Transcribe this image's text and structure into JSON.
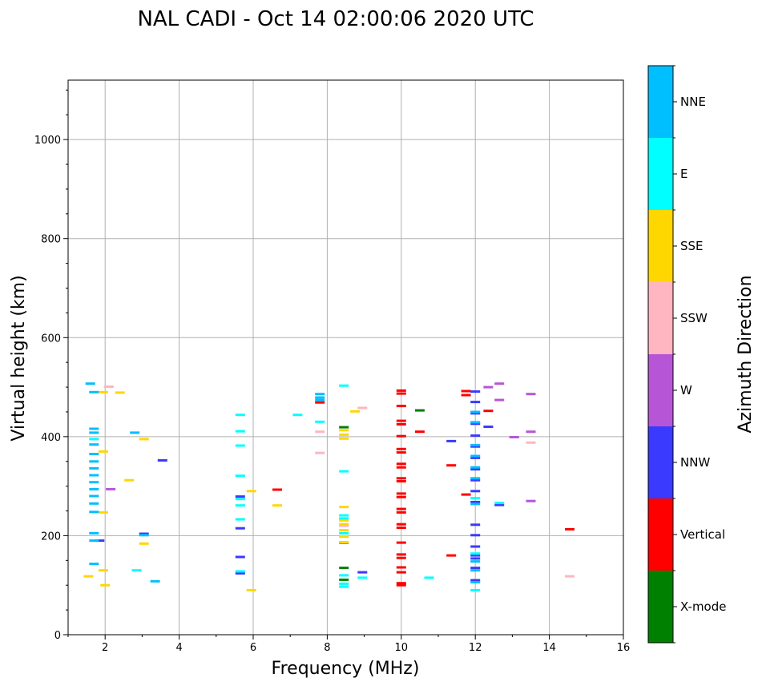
{
  "chart_data": {
    "type": "scatter",
    "title": "NAL CADI - Oct 14 02:00:06 2020 UTC",
    "xlabel": "Frequency (MHz)",
    "ylabel": "Virtual height (km)",
    "xlim": [
      1,
      16
    ],
    "ylim": [
      0,
      1120
    ],
    "xticks": [
      2,
      4,
      6,
      8,
      10,
      12,
      14,
      16
    ],
    "yticks": [
      0,
      200,
      400,
      600,
      800,
      1000
    ],
    "grid": true,
    "colorbar": {
      "title": "Azimuth Direction",
      "categories": [
        {
          "name": "X-mode",
          "color": "#008000"
        },
        {
          "name": "Vertical",
          "color": "#ff0000"
        },
        {
          "name": "NNW",
          "color": "#3a3aff"
        },
        {
          "name": "W",
          "color": "#b656d6"
        },
        {
          "name": "SSW",
          "color": "#ffb6c1"
        },
        {
          "name": "SSE",
          "color": "#ffd700"
        },
        {
          "name": "E",
          "color": "#00ffff"
        },
        {
          "name": "NNE",
          "color": "#00bfff"
        }
      ]
    },
    "series": [
      {
        "name": "X-mode",
        "points": [
          [
            8.45,
            419
          ],
          [
            8.45,
            186
          ],
          [
            8.45,
            135
          ],
          [
            8.45,
            111
          ],
          [
            10.5,
            453
          ]
        ]
      },
      {
        "name": "Vertical",
        "points": [
          [
            10.0,
            493
          ],
          [
            10.0,
            487
          ],
          [
            10.0,
            462
          ],
          [
            10.0,
            432
          ],
          [
            10.0,
            425
          ],
          [
            10.0,
            401
          ],
          [
            10.0,
            375
          ],
          [
            10.0,
            368
          ],
          [
            10.0,
            345
          ],
          [
            10.0,
            338
          ],
          [
            10.0,
            316
          ],
          [
            10.0,
            310
          ],
          [
            10.0,
            285
          ],
          [
            10.0,
            278
          ],
          [
            10.0,
            254
          ],
          [
            10.0,
            247
          ],
          [
            10.0,
            223
          ],
          [
            10.0,
            216
          ],
          [
            10.0,
            186
          ],
          [
            10.0,
            162
          ],
          [
            10.0,
            155
          ],
          [
            10.0,
            136
          ],
          [
            10.0,
            126
          ],
          [
            10.0,
            104
          ],
          [
            10.0,
            100
          ],
          [
            10.5,
            410
          ],
          [
            11.35,
            342
          ],
          [
            11.35,
            160
          ],
          [
            11.75,
            283
          ],
          [
            11.75,
            492
          ],
          [
            11.75,
            484
          ],
          [
            7.8,
            469
          ],
          [
            6.65,
            293
          ],
          [
            14.55,
            213
          ],
          [
            12.35,
            452
          ]
        ]
      },
      {
        "name": "NNW",
        "points": [
          [
            12.0,
            491
          ],
          [
            12.0,
            470
          ],
          [
            12.0,
            447
          ],
          [
            12.0,
            426
          ],
          [
            12.0,
            402
          ],
          [
            12.0,
            380
          ],
          [
            12.0,
            357
          ],
          [
            12.0,
            334
          ],
          [
            12.0,
            312
          ],
          [
            12.0,
            290
          ],
          [
            12.0,
            268
          ],
          [
            12.0,
            222
          ],
          [
            12.0,
            201
          ],
          [
            12.0,
            178
          ],
          [
            12.0,
            160
          ],
          [
            12.0,
            154
          ],
          [
            12.0,
            135
          ],
          [
            12.0,
            110
          ],
          [
            11.35,
            391
          ],
          [
            12.35,
            420
          ],
          [
            12.65,
            262
          ],
          [
            5.65,
            279
          ],
          [
            5.65,
            215
          ],
          [
            5.65,
            157
          ],
          [
            5.65,
            124
          ],
          [
            8.95,
            126
          ],
          [
            1.85,
            190
          ],
          [
            3.05,
            204
          ],
          [
            3.55,
            352
          ]
        ]
      },
      {
        "name": "W",
        "points": [
          [
            12.35,
            500
          ],
          [
            12.65,
            507
          ],
          [
            13.5,
            486
          ],
          [
            13.5,
            410
          ],
          [
            13.5,
            270
          ],
          [
            13.05,
            399
          ],
          [
            12.65,
            474
          ],
          [
            2.15,
            294
          ]
        ]
      },
      {
        "name": "SSW",
        "points": [
          [
            7.8,
            410
          ],
          [
            7.8,
            367
          ],
          [
            8.95,
            458
          ],
          [
            13.5,
            388
          ],
          [
            14.55,
            118
          ],
          [
            8.45,
            220
          ],
          [
            2.1,
            501
          ]
        ]
      },
      {
        "name": "SSE",
        "points": [
          [
            8.45,
            413
          ],
          [
            8.45,
            404
          ],
          [
            8.45,
            396
          ],
          [
            8.45,
            258
          ],
          [
            8.45,
            231
          ],
          [
            8.45,
            223
          ],
          [
            8.45,
            211
          ],
          [
            8.45,
            198
          ],
          [
            8.45,
            187
          ],
          [
            8.75,
            451
          ],
          [
            5.95,
            290
          ],
          [
            5.95,
            90
          ],
          [
            6.65,
            261
          ],
          [
            2.4,
            489
          ],
          [
            1.95,
            490
          ],
          [
            1.95,
            370
          ],
          [
            2.65,
            312
          ],
          [
            3.05,
            395
          ],
          [
            3.05,
            184
          ],
          [
            1.95,
            247
          ],
          [
            1.95,
            130
          ],
          [
            1.55,
            118
          ],
          [
            2.0,
            100
          ]
        ]
      },
      {
        "name": "E",
        "points": [
          [
            8.45,
            503
          ],
          [
            8.45,
            330
          ],
          [
            8.45,
            241
          ],
          [
            8.45,
            235
          ],
          [
            8.45,
            205
          ],
          [
            8.45,
            120
          ],
          [
            8.45,
            103
          ],
          [
            8.45,
            97
          ],
          [
            5.65,
            444
          ],
          [
            5.65,
            411
          ],
          [
            5.65,
            382
          ],
          [
            5.65,
            321
          ],
          [
            5.65,
            274
          ],
          [
            5.65,
            261
          ],
          [
            5.65,
            233
          ],
          [
            5.65,
            128
          ],
          [
            7.2,
            444
          ],
          [
            7.8,
            430
          ],
          [
            8.95,
            115
          ],
          [
            10.75,
            115
          ],
          [
            12.0,
            90
          ],
          [
            12.0,
            276
          ],
          [
            12.0,
            164
          ],
          [
            12.65,
            266
          ],
          [
            2.85,
            130
          ],
          [
            1.7,
            395
          ]
        ]
      },
      {
        "name": "NNE",
        "points": [
          [
            7.8,
            486
          ],
          [
            7.8,
            479
          ],
          [
            7.8,
            474
          ],
          [
            12.0,
            450
          ],
          [
            12.0,
            429
          ],
          [
            12.0,
            383
          ],
          [
            12.0,
            361
          ],
          [
            12.0,
            338
          ],
          [
            12.0,
            316
          ],
          [
            12.0,
            264
          ],
          [
            12.0,
            148
          ],
          [
            12.0,
            130
          ],
          [
            12.0,
            106
          ],
          [
            1.7,
            416
          ],
          [
            1.7,
            408
          ],
          [
            1.7,
            384
          ],
          [
            1.7,
            365
          ],
          [
            1.7,
            350
          ],
          [
            1.7,
            336
          ],
          [
            1.7,
            322
          ],
          [
            1.7,
            308
          ],
          [
            1.7,
            294
          ],
          [
            1.7,
            280
          ],
          [
            1.7,
            265
          ],
          [
            1.7,
            248
          ],
          [
            1.7,
            205
          ],
          [
            1.7,
            190
          ],
          [
            1.7,
            143
          ],
          [
            1.6,
            507
          ],
          [
            1.7,
            490
          ],
          [
            2.8,
            408
          ],
          [
            3.05,
            201
          ],
          [
            3.35,
            108
          ]
        ]
      }
    ]
  }
}
